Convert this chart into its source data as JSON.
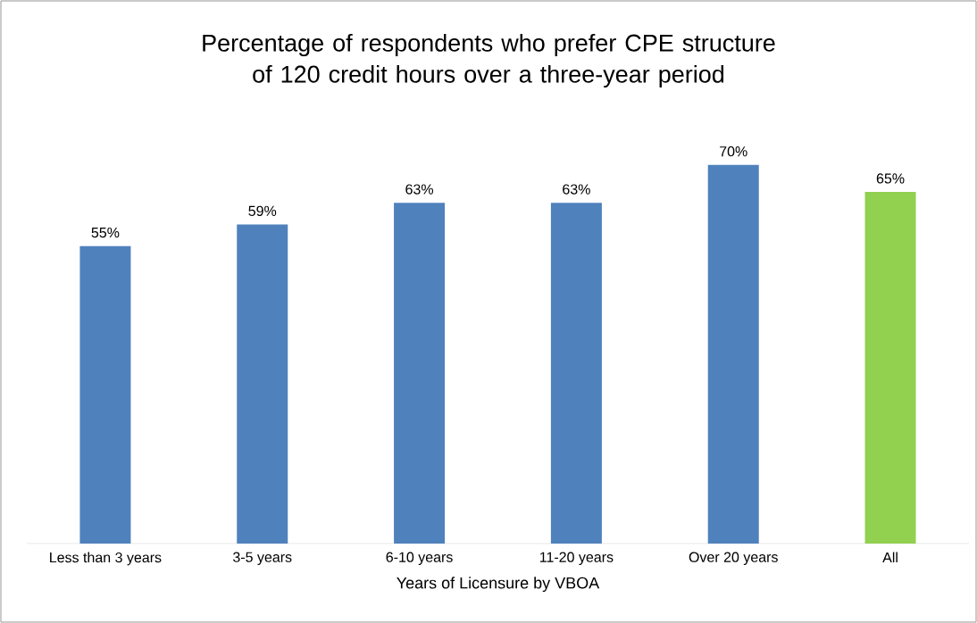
{
  "chart_data": {
    "type": "bar",
    "title": "Percentage of respondents who prefer CPE structure\nof 120 credit hours over a three-year period",
    "xlabel": "Years of Licensure by VBOA",
    "categories": [
      "Less than 3 years",
      "3-5 years",
      "6-10 years",
      "11-20 years",
      "Over 20 years",
      "All"
    ],
    "values": [
      55,
      59,
      63,
      63,
      70,
      65
    ],
    "colors": [
      "#4f81bd",
      "#4f81bd",
      "#4f81bd",
      "#4f81bd",
      "#4f81bd",
      "#92d050"
    ],
    "value_labels": [
      "55%",
      "59%",
      "63%",
      "63%",
      "70%",
      "65%"
    ]
  }
}
